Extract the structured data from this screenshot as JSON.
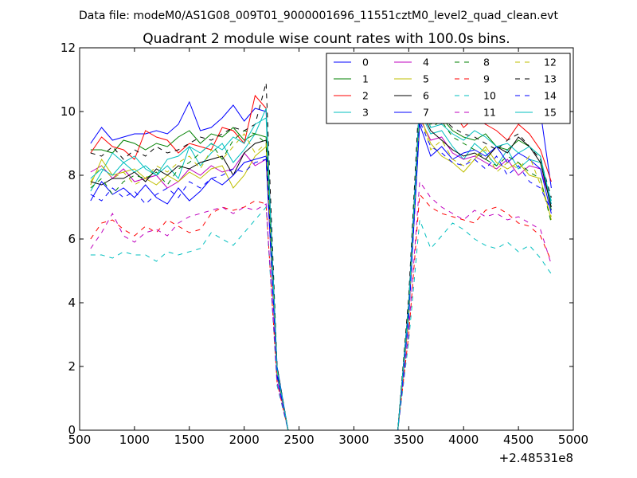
{
  "suptitle": "Data file: modeM0/AS1G08_009T01_9000001696_11551cztM0_level2_quad_clean.evt",
  "chart_data": {
    "type": "line",
    "title": "Quadrant 2 module wise count rates with 100.0s bins.",
    "xlabel": "",
    "ylabel": "",
    "x_offset_label": "+2.48531e8",
    "xlim": [
      500,
      5000
    ],
    "ylim": [
      0,
      12
    ],
    "xticks": [
      "500",
      "1000",
      "1500",
      "2000",
      "2500",
      "3000",
      "3500",
      "4000",
      "4500",
      "5000"
    ],
    "yticks": [
      "0",
      "2",
      "4",
      "6",
      "8",
      "10",
      "12"
    ],
    "grid": false,
    "legend": {
      "placement": "top-right",
      "columns": 4
    },
    "x": [
      600,
      700,
      800,
      900,
      1000,
      1100,
      1200,
      1300,
      1400,
      1500,
      1600,
      1700,
      1800,
      1900,
      2000,
      2100,
      2200,
      2300,
      2400,
      2500,
      2600,
      2700,
      2800,
      2900,
      3000,
      3100,
      3200,
      3300,
      3400,
      3500,
      3600,
      3700,
      3800,
      3900,
      4000,
      4100,
      4200,
      4300,
      4400,
      4500,
      4600,
      4700,
      4800
    ],
    "series": [
      {
        "name": "0",
        "color": "#0000ff",
        "dash": "solid",
        "values": [
          9.0,
          9.5,
          9.1,
          9.2,
          9.3,
          9.3,
          9.4,
          9.3,
          9.6,
          10.3,
          9.4,
          9.5,
          9.8,
          10.2,
          9.7,
          10.1,
          10.0,
          2.0,
          0,
          0,
          0,
          0,
          0,
          0,
          0,
          0,
          0,
          0,
          0,
          4.0,
          10.4,
          10.0,
          9.6,
          10.3,
          9.8,
          10.0,
          9.6,
          10.2,
          10.2,
          9.9,
          10.0,
          10.0,
          7.6
        ]
      },
      {
        "name": "1",
        "color": "#008000",
        "dash": "solid",
        "values": [
          8.8,
          8.8,
          8.7,
          9.1,
          9.0,
          8.8,
          9.0,
          8.9,
          9.2,
          9.4,
          9.0,
          9.3,
          9.2,
          9.5,
          9.1,
          9.3,
          9.2,
          1.9,
          0,
          0,
          0,
          0,
          0,
          0,
          0,
          0,
          0,
          0,
          0,
          3.8,
          10.2,
          9.6,
          9.8,
          9.4,
          9.2,
          9.1,
          9.3,
          8.9,
          8.8,
          9.1,
          8.9,
          8.6,
          6.9
        ]
      },
      {
        "name": "2",
        "color": "#ff0000",
        "dash": "solid",
        "values": [
          8.7,
          9.2,
          8.9,
          8.8,
          8.5,
          9.4,
          9.2,
          9.1,
          8.7,
          9.0,
          8.9,
          8.8,
          9.5,
          9.4,
          9.0,
          10.5,
          10.1,
          1.8,
          0,
          0,
          0,
          0,
          0,
          0,
          0,
          0,
          0,
          0,
          0,
          3.9,
          10.3,
          9.7,
          9.9,
          10.0,
          9.5,
          9.8,
          9.6,
          9.4,
          9.1,
          9.6,
          9.3,
          8.8,
          7.8
        ]
      },
      {
        "name": "3",
        "color": "#00bfbf",
        "dash": "solid",
        "values": [
          7.5,
          8.1,
          8.7,
          8.4,
          8.6,
          8.2,
          8.0,
          8.3,
          7.9,
          8.9,
          8.3,
          8.7,
          9.0,
          8.4,
          8.8,
          9.3,
          10.1,
          1.8,
          0,
          0,
          0,
          0,
          0,
          0,
          0,
          0,
          0,
          0,
          0,
          3.7,
          10.0,
          9.3,
          9.4,
          8.9,
          8.5,
          9.0,
          8.7,
          8.3,
          8.8,
          8.2,
          8.5,
          8.4,
          7.2
        ]
      },
      {
        "name": "4",
        "color": "#bf00bf",
        "dash": "solid",
        "values": [
          8.1,
          8.3,
          7.9,
          8.2,
          7.8,
          7.9,
          8.0,
          7.6,
          7.8,
          8.2,
          8.0,
          8.3,
          8.1,
          8.2,
          8.7,
          8.3,
          8.5,
          1.7,
          0,
          0,
          0,
          0,
          0,
          0,
          0,
          0,
          0,
          0,
          0,
          3.6,
          9.8,
          9.1,
          9.2,
          8.7,
          8.5,
          8.6,
          8.4,
          8.2,
          8.5,
          8.0,
          8.3,
          8.2,
          7.1
        ]
      },
      {
        "name": "5",
        "color": "#bfbf00",
        "dash": "solid",
        "values": [
          7.7,
          8.5,
          8.0,
          8.1,
          8.2,
          7.9,
          7.7,
          8.0,
          7.8,
          8.1,
          7.9,
          8.2,
          8.3,
          7.6,
          8.0,
          8.6,
          8.9,
          1.8,
          0,
          0,
          0,
          0,
          0,
          0,
          0,
          0,
          0,
          0,
          0,
          3.5,
          9.9,
          9.0,
          8.6,
          8.4,
          8.1,
          8.5,
          8.9,
          8.4,
          8.2,
          8.4,
          8.0,
          7.9,
          6.6
        ]
      },
      {
        "name": "6",
        "color": "#000000",
        "dash": "solid",
        "values": [
          7.8,
          7.7,
          7.9,
          7.9,
          8.1,
          7.8,
          8.2,
          8.0,
          8.3,
          8.2,
          8.4,
          8.5,
          8.6,
          8.0,
          8.7,
          9.0,
          9.1,
          1.8,
          0,
          0,
          0,
          0,
          0,
          0,
          0,
          0,
          0,
          0,
          0,
          3.7,
          10.1,
          9.4,
          9.1,
          8.8,
          8.6,
          8.7,
          8.5,
          8.9,
          8.7,
          9.2,
          8.9,
          8.4,
          7.0
        ]
      },
      {
        "name": "7",
        "color": "#0000ff",
        "dash": "solid",
        "values": [
          7.2,
          7.8,
          7.4,
          7.6,
          7.3,
          7.7,
          7.3,
          7.1,
          7.6,
          7.2,
          7.5,
          7.9,
          7.7,
          8.0,
          8.4,
          8.5,
          8.6,
          1.7,
          0,
          0,
          0,
          0,
          0,
          0,
          0,
          0,
          0,
          0,
          0,
          3.6,
          9.6,
          8.6,
          8.9,
          8.5,
          8.7,
          8.8,
          8.6,
          8.9,
          8.4,
          8.7,
          8.5,
          8.2,
          6.8
        ]
      },
      {
        "name": "8",
        "color": "#008000",
        "dash": "dashed",
        "values": [
          7.6,
          7.9,
          7.4,
          7.8,
          8.0,
          7.9,
          8.1,
          7.7,
          8.2,
          8.4,
          8.7,
          9.0,
          8.5,
          9.1,
          9.4,
          9.3,
          9.0,
          1.9,
          0,
          0,
          0,
          0,
          0,
          0,
          0,
          0,
          0,
          0,
          0,
          4.0,
          10.4,
          9.5,
          9.7,
          9.2,
          9.0,
          8.8,
          8.5,
          8.3,
          8.6,
          8.4,
          8.1,
          7.9,
          6.5
        ]
      },
      {
        "name": "9",
        "color": "#ff0000",
        "dash": "dashed",
        "values": [
          6.0,
          6.5,
          6.6,
          6.3,
          6.1,
          6.4,
          6.2,
          6.6,
          6.4,
          6.2,
          6.3,
          6.8,
          7.0,
          6.9,
          7.0,
          7.2,
          7.1,
          1.5,
          0,
          0,
          0,
          0,
          0,
          0,
          0,
          0,
          0,
          0,
          0,
          3.0,
          7.4,
          7.0,
          6.8,
          6.7,
          6.6,
          6.5,
          6.9,
          7.0,
          6.8,
          6.5,
          6.4,
          6.1,
          5.3
        ]
      },
      {
        "name": "10",
        "color": "#00bfbf",
        "dash": "dashed",
        "values": [
          5.5,
          5.5,
          5.4,
          5.6,
          5.5,
          5.5,
          5.3,
          5.6,
          5.5,
          5.6,
          5.7,
          6.2,
          6.0,
          5.8,
          6.2,
          6.6,
          7.0,
          1.4,
          0,
          0,
          0,
          0,
          0,
          0,
          0,
          0,
          0,
          0,
          0,
          2.8,
          6.6,
          5.7,
          6.1,
          6.5,
          6.3,
          6.0,
          5.8,
          5.7,
          5.9,
          5.6,
          5.8,
          5.4,
          4.9
        ]
      },
      {
        "name": "11",
        "color": "#bf00bf",
        "dash": "dashed",
        "values": [
          5.7,
          6.2,
          6.8,
          6.1,
          5.9,
          6.2,
          6.3,
          6.1,
          6.5,
          6.7,
          6.8,
          6.9,
          7.0,
          6.8,
          7.0,
          6.9,
          7.1,
          1.5,
          0,
          0,
          0,
          0,
          0,
          0,
          0,
          0,
          0,
          0,
          0,
          3.1,
          7.8,
          7.3,
          7.0,
          6.8,
          6.6,
          6.9,
          6.7,
          6.8,
          6.6,
          6.7,
          6.5,
          6.3,
          5.2
        ]
      },
      {
        "name": "12",
        "color": "#bfbf00",
        "dash": "dashed",
        "values": [
          7.8,
          8.3,
          7.9,
          8.1,
          7.7,
          7.9,
          8.3,
          8.1,
          8.4,
          8.6,
          8.2,
          8.8,
          8.5,
          8.9,
          9.3,
          8.7,
          9.0,
          1.8,
          0,
          0,
          0,
          0,
          0,
          0,
          0,
          0,
          0,
          0,
          0,
          3.7,
          10.0,
          8.8,
          9.1,
          8.5,
          8.3,
          8.6,
          8.8,
          8.1,
          8.4,
          8.2,
          8.6,
          7.7,
          6.7
        ]
      },
      {
        "name": "13",
        "color": "#000000",
        "dash": "dashed",
        "values": [
          8.7,
          8.6,
          8.9,
          8.5,
          8.8,
          8.6,
          8.9,
          8.7,
          8.8,
          9.0,
          9.2,
          9.1,
          9.3,
          9.5,
          9.4,
          9.6,
          10.9,
          2.0,
          0,
          0,
          0,
          0,
          0,
          0,
          0,
          0,
          0,
          0,
          0,
          4.2,
          10.8,
          10.2,
          9.8,
          9.5,
          9.3,
          9.2,
          9.0,
          8.8,
          9.1,
          9.3,
          8.9,
          8.5,
          7.3
        ]
      },
      {
        "name": "14",
        "color": "#0000ff",
        "dash": "dashed",
        "values": [
          7.4,
          7.2,
          7.6,
          7.3,
          7.5,
          7.1,
          7.4,
          7.6,
          7.3,
          7.8,
          7.6,
          7.9,
          8.0,
          8.2,
          8.1,
          8.4,
          8.5,
          1.7,
          0,
          0,
          0,
          0,
          0,
          0,
          0,
          0,
          0,
          0,
          0,
          3.5,
          9.7,
          8.9,
          8.7,
          8.4,
          8.3,
          8.5,
          8.2,
          8.6,
          8.0,
          8.3,
          7.8,
          7.6,
          6.9
        ]
      },
      {
        "name": "15",
        "color": "#00bfbf",
        "dash": "solid",
        "values": [
          7.9,
          8.2,
          8.0,
          8.4,
          8.1,
          8.3,
          8.0,
          8.5,
          8.6,
          8.9,
          8.7,
          9.0,
          8.8,
          9.2,
          9.0,
          9.6,
          9.8,
          1.9,
          0,
          0,
          0,
          0,
          0,
          0,
          0,
          0,
          0,
          0,
          0,
          3.9,
          10.3,
          9.5,
          9.6,
          9.3,
          9.1,
          9.4,
          9.2,
          8.9,
          9.0,
          8.7,
          8.9,
          8.6,
          7.1
        ]
      }
    ]
  }
}
